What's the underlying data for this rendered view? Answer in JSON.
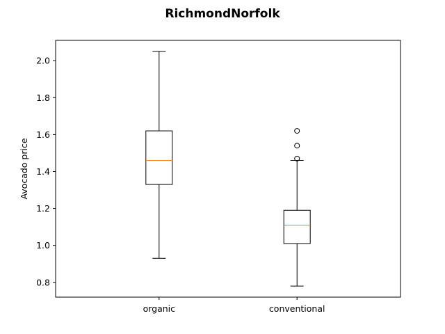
{
  "chart_data": {
    "type": "boxplot",
    "title": "RichmondNorfolk",
    "xlabel": "",
    "ylabel": "Avocado price",
    "categories": [
      "organic",
      "conventional"
    ],
    "ylim": [
      0.72,
      2.11
    ],
    "yticks": [
      0.8,
      1.0,
      1.2,
      1.4,
      1.6,
      1.8,
      2.0
    ],
    "ytick_labels": [
      "0.8",
      "1.0",
      "1.2",
      "1.4",
      "1.6",
      "1.8",
      "2.0"
    ],
    "grid": false,
    "boxes": [
      {
        "category": "organic",
        "whisker_low": 0.93,
        "q1": 1.33,
        "median": 1.46,
        "q3": 1.62,
        "whisker_high": 2.05,
        "outliers": []
      },
      {
        "category": "conventional",
        "whisker_low": 0.78,
        "q1": 1.01,
        "median": 1.11,
        "q3": 1.19,
        "whisker_high": 1.46,
        "outliers": [
          1.47,
          1.54,
          1.62
        ]
      }
    ],
    "colors": {
      "box": "#000000",
      "median": "#ff7f0e",
      "outlier_edge": "#000000"
    }
  }
}
